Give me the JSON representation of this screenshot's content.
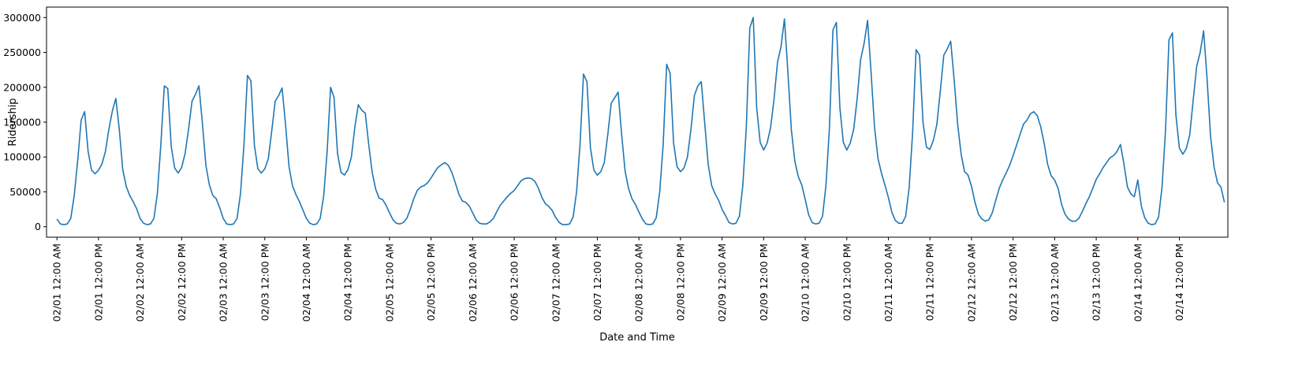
{
  "chart_data": {
    "type": "line",
    "xlabel": "Date and Time",
    "ylabel": "Ridership",
    "grid": false,
    "line_color": "#1f77b4",
    "x_unit": "hour",
    "x_start": "02/01 12:00 AM",
    "x_end": "02/14 11:00 PM",
    "xlim": [
      "01/31 09:00 PM",
      "02/15 02:00 AM"
    ],
    "ylim": [
      -15000,
      315000
    ],
    "y_ticks": [
      0,
      50000,
      100000,
      150000,
      200000,
      250000,
      300000
    ],
    "y_tick_labels": [
      "0",
      "50000",
      "100000",
      "150000",
      "200000",
      "250000",
      "300000"
    ],
    "x_tick_labels": [
      "02/01 12:00 AM",
      "02/01 12:00 PM",
      "02/02 12:00 AM",
      "02/02 12:00 PM",
      "02/03 12:00 AM",
      "02/03 12:00 PM",
      "02/04 12:00 AM",
      "02/04 12:00 PM",
      "02/05 12:00 AM",
      "02/05 12:00 PM",
      "02/06 12:00 AM",
      "02/06 12:00 PM",
      "02/07 12:00 AM",
      "02/07 12:00 PM",
      "02/08 12:00 AM",
      "02/08 12:00 PM",
      "02/09 12:00 AM",
      "02/09 12:00 PM",
      "02/10 12:00 AM",
      "02/10 12:00 PM",
      "02/11 12:00 AM",
      "02/11 12:00 PM",
      "02/12 12:00 AM",
      "02/12 12:00 PM",
      "02/13 12:00 AM",
      "02/13 12:00 PM",
      "02/14 12:00 AM",
      "02/14 12:00 PM"
    ],
    "series": [
      {
        "values": [
          11000,
          4000,
          3000,
          4000,
          12000,
          45000,
          95000,
          153000,
          165000,
          108000,
          81000,
          76000,
          81000,
          90000,
          108000,
          140000,
          166000,
          184000,
          140000,
          82000,
          58000,
          45000,
          36000,
          26000,
          12000,
          5000,
          3000,
          4000,
          12000,
          48000,
          118000,
          202000,
          198000,
          115000,
          84000,
          77000,
          85000,
          105000,
          140000,
          180000,
          190000,
          202000,
          148000,
          88000,
          60000,
          45000,
          40000,
          27000,
          12000,
          4000,
          3000,
          4000,
          12000,
          48000,
          118000,
          217000,
          209000,
          117000,
          83000,
          77000,
          83000,
          97000,
          137000,
          180000,
          188000,
          199000,
          146000,
          86000,
          59000,
          46000,
          36000,
          24000,
          12000,
          5000,
          3000,
          4000,
          12000,
          44000,
          108000,
          200000,
          185000,
          105000,
          78000,
          74000,
          82000,
          100000,
          143000,
          175000,
          167000,
          163000,
          118000,
          78000,
          54000,
          41000,
          39000,
          31000,
          20000,
          10000,
          5000,
          4000,
          6000,
          12000,
          25000,
          40000,
          52000,
          57000,
          59000,
          63000,
          70000,
          78000,
          85000,
          89000,
          92000,
          88000,
          78000,
          63000,
          47000,
          37000,
          35000,
          30000,
          20000,
          10000,
          5000,
          4000,
          4000,
          7000,
          12000,
          22000,
          31000,
          37000,
          43000,
          48000,
          52000,
          59000,
          66000,
          69000,
          70000,
          69000,
          65000,
          55000,
          42000,
          33000,
          29000,
          23000,
          13000,
          6000,
          3000,
          3000,
          4000,
          14000,
          50000,
          118000,
          219000,
          208000,
          113000,
          81000,
          74000,
          79000,
          92000,
          132000,
          177000,
          185000,
          193000,
          133000,
          80000,
          55000,
          40000,
          32000,
          21000,
          11000,
          4000,
          3000,
          4000,
          13000,
          50000,
          118000,
          233000,
          220000,
          120000,
          86000,
          79000,
          84000,
          100000,
          139000,
          188000,
          202000,
          208000,
          148000,
          89000,
          59000,
          47000,
          38000,
          25000,
          16000,
          6000,
          4000,
          5000,
          15000,
          60000,
          143000,
          285000,
          300000,
          170000,
          121000,
          110000,
          120000,
          142000,
          183000,
          236000,
          258000,
          298000,
          222000,
          139000,
          94000,
          72000,
          60000,
          39000,
          17000,
          6000,
          4000,
          5000,
          15000,
          60000,
          143000,
          282000,
          293000,
          171000,
          121000,
          110000,
          120000,
          140000,
          184000,
          240000,
          263000,
          296000,
          222000,
          143000,
          98000,
          77000,
          60000,
          42000,
          21000,
          9000,
          5000,
          5000,
          15000,
          56000,
          135000,
          254000,
          246000,
          150000,
          114000,
          111000,
          124000,
          147000,
          195000,
          246000,
          255000,
          266000,
          210000,
          147000,
          104000,
          79000,
          74000,
          58000,
          35000,
          18000,
          11000,
          8000,
          10000,
          20000,
          38000,
          55000,
          67000,
          77000,
          88000,
          102000,
          117000,
          132000,
          147000,
          153000,
          162000,
          165000,
          159000,
          143000,
          119000,
          89000,
          73000,
          67000,
          55000,
          32000,
          18000,
          11000,
          8000,
          8000,
          12000,
          22000,
          33000,
          43000,
          55000,
          68000,
          76000,
          85000,
          92000,
          99000,
          102000,
          108000,
          118000,
          90000,
          57000,
          47000,
          43000,
          67000,
          30000,
          13000,
          5000,
          3000,
          4000,
          14000,
          57000,
          138000,
          268000,
          278000,
          160000,
          113000,
          104000,
          112000,
          132000,
          182000,
          230000,
          250000,
          281000,
          212000,
          130000,
          86000,
          63000,
          57000,
          35000
        ]
      }
    ]
  }
}
